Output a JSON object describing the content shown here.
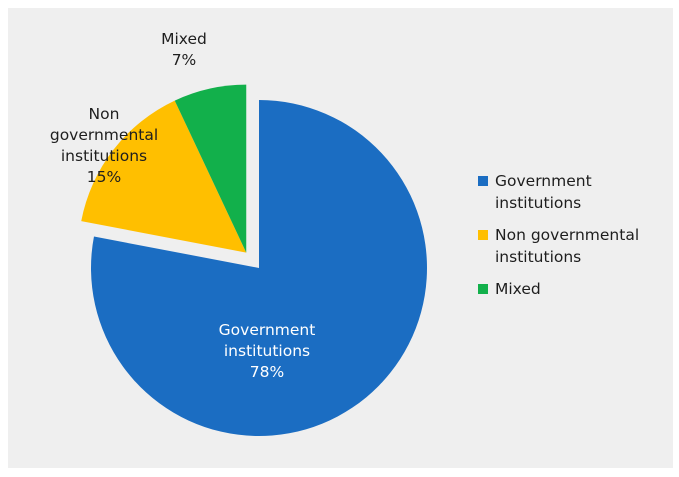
{
  "chart_data": {
    "type": "pie",
    "slices": [
      {
        "category": "Government institutions",
        "value": 78,
        "color": "#1b6dc2",
        "exploded": false
      },
      {
        "category": "Non governmental institutions",
        "value": 15,
        "color": "#ffbf00",
        "exploded": true
      },
      {
        "category": "Mixed",
        "value": 7,
        "color": "#12b04b",
        "exploded": true
      }
    ],
    "slice_labels": [
      {
        "lines": [
          "Government",
          "institutions",
          "78%"
        ]
      },
      {
        "lines": [
          "Non",
          "governmental",
          "institutions",
          "15%"
        ]
      },
      {
        "lines": [
          "Mixed",
          "7%"
        ]
      }
    ],
    "legend": {
      "placement": "right",
      "entries": [
        {
          "lines": [
            "Government",
            "institutions"
          ],
          "color": "#1b6dc2"
        },
        {
          "lines": [
            "Non governmental",
            "institutions"
          ],
          "color": "#ffbf00"
        },
        {
          "lines": [
            "Mixed"
          ],
          "color": "#12b04b"
        }
      ]
    },
    "background": "#efefef"
  }
}
